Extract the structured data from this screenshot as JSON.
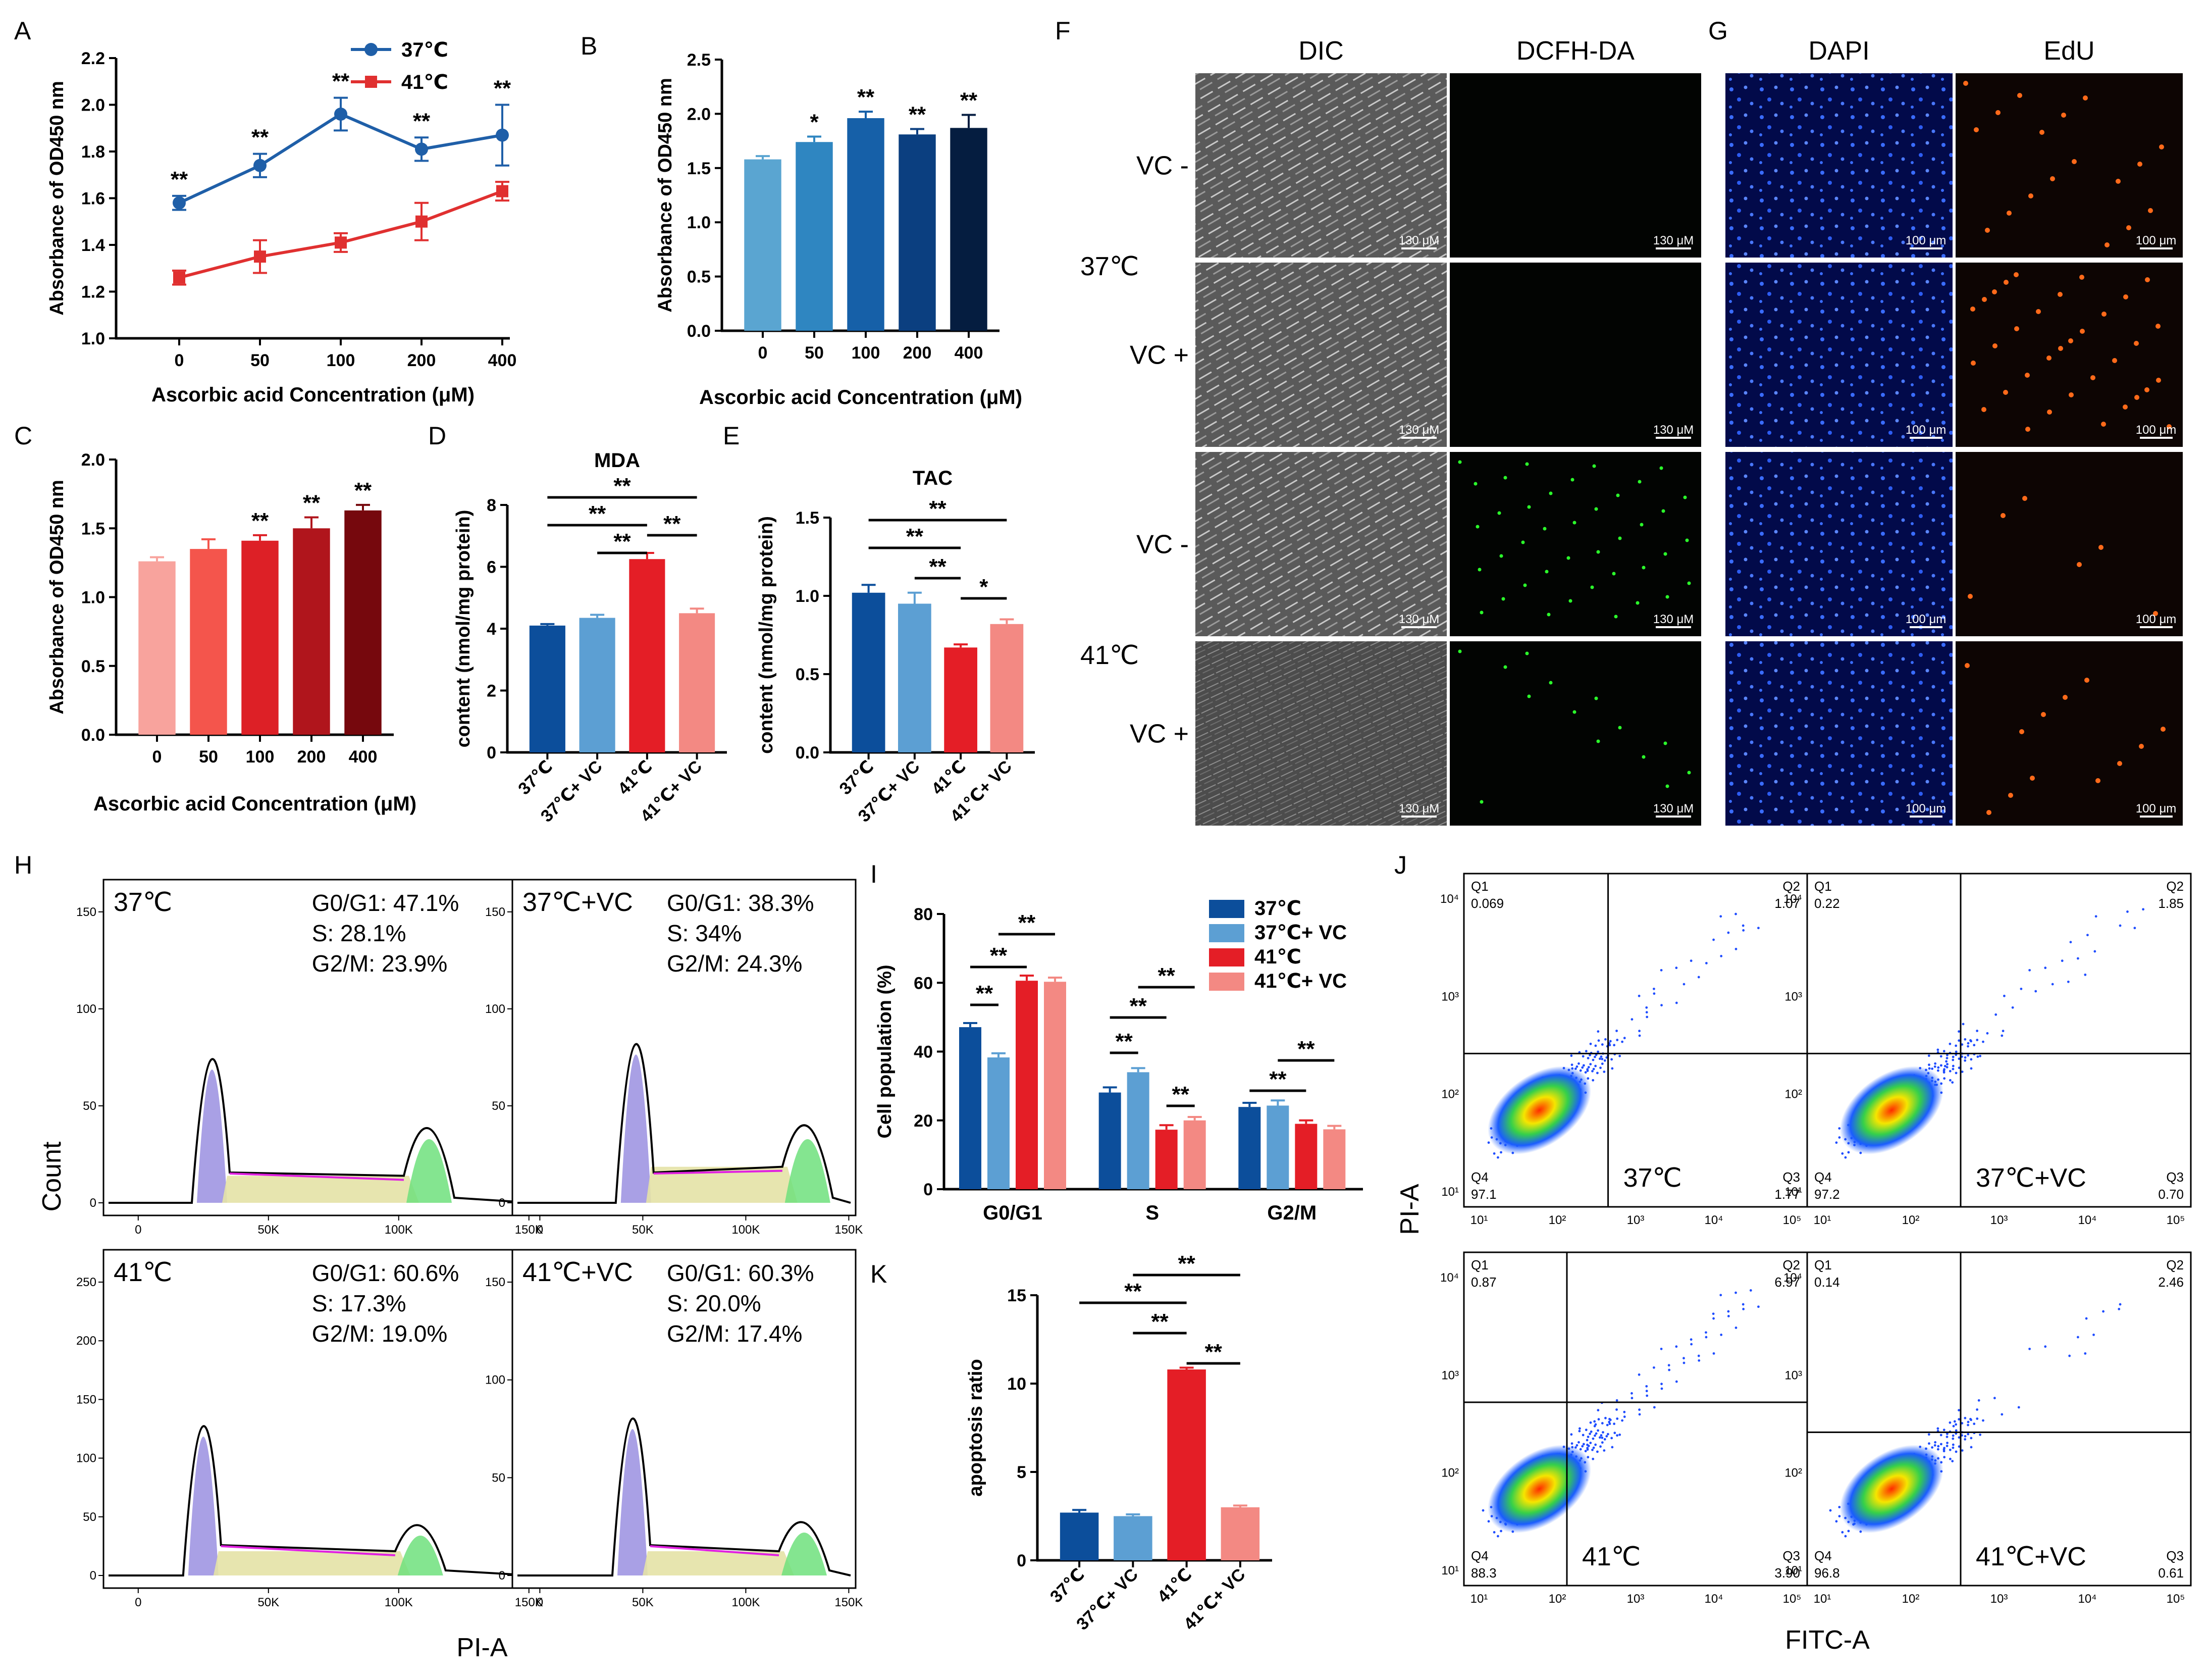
{
  "panels": [
    "A",
    "B",
    "C",
    "D",
    "E",
    "F",
    "G",
    "H",
    "I",
    "J",
    "K"
  ],
  "colors": {
    "c37": "#1f5fa8",
    "c41": "#e03030",
    "b_shades": [
      "#5aa5d1",
      "#2f86c1",
      "#1660a8",
      "#0b3f80",
      "#051d40"
    ],
    "c_shades": [
      "#f8a39d",
      "#f4554c",
      "#dd2026",
      "#b0151c",
      "#76080d"
    ],
    "g4": [
      "#0c4e9b",
      "#5c9fd3",
      "#e41e26",
      "#f38983"
    ]
  },
  "chart_data": [
    {
      "id": "A",
      "type": "line",
      "categories": [
        "0",
        "50",
        "100",
        "200",
        "400"
      ],
      "series": [
        {
          "name": "37℃",
          "values": [
            1.58,
            1.74,
            1.96,
            1.81,
            1.87
          ],
          "errors": [
            0.03,
            0.05,
            0.07,
            0.05,
            0.13
          ]
        },
        {
          "name": "41℃",
          "values": [
            1.26,
            1.35,
            1.41,
            1.5,
            1.63
          ],
          "errors": [
            0.03,
            0.07,
            0.04,
            0.08,
            0.04
          ]
        }
      ],
      "stars": [
        "**",
        "**",
        "**",
        "**",
        "**"
      ],
      "ylabel": "Absorbance of OD450 nm",
      "xlabel": "Ascorbic acid Concentration (μM)",
      "ylim": [
        1.0,
        2.2
      ],
      "yticks": [
        "1.0",
        "1.2",
        "1.4",
        "1.6",
        "1.8",
        "2.0",
        "2.2"
      ]
    },
    {
      "id": "B",
      "type": "bar",
      "categories": [
        "0",
        "50",
        "100",
        "200",
        "400"
      ],
      "values": [
        1.58,
        1.74,
        1.96,
        1.81,
        1.87
      ],
      "errors": [
        0.03,
        0.05,
        0.06,
        0.05,
        0.12
      ],
      "stars": [
        "",
        "*",
        "**",
        "**",
        "**"
      ],
      "ylabel": "Absorbance of OD450 nm",
      "xlabel": "Ascorbic acid Concentration (μM)",
      "ylim": [
        0,
        2.5
      ],
      "yticks": [
        "0.0",
        "0.5",
        "1.0",
        "1.5",
        "2.0",
        "2.5"
      ]
    },
    {
      "id": "C",
      "type": "bar",
      "categories": [
        "0",
        "50",
        "100",
        "200",
        "400"
      ],
      "values": [
        1.26,
        1.35,
        1.41,
        1.5,
        1.63
      ],
      "errors": [
        0.03,
        0.07,
        0.04,
        0.08,
        0.04
      ],
      "stars": [
        "",
        "",
        "**",
        "**",
        "**"
      ],
      "ylabel": "Absorbance of OD450 nm",
      "xlabel": "Ascorbic acid Concentration (μM)",
      "ylim": [
        0,
        2.0
      ],
      "yticks": [
        "0.0",
        "0.5",
        "1.0",
        "1.5",
        "2.0"
      ]
    },
    {
      "id": "D",
      "type": "bar",
      "title": "MDA",
      "categories": [
        "37℃",
        "37℃+ VC",
        "41℃",
        "41℃+ VC"
      ],
      "values": [
        4.1,
        4.35,
        6.25,
        4.5
      ],
      "errors": [
        0.05,
        0.1,
        0.2,
        0.15
      ],
      "ylabel": "content (nmol/mg protein)",
      "ylim": [
        0,
        8
      ],
      "yticks": [
        "0",
        "2",
        "4",
        "6",
        "8"
      ]
    },
    {
      "id": "E",
      "type": "bar",
      "title": "TAC",
      "categories": [
        "37℃",
        "37℃+ VC",
        "41℃",
        "41℃+ VC"
      ],
      "values": [
        1.02,
        0.95,
        0.67,
        0.82
      ],
      "errors": [
        0.05,
        0.07,
        0.02,
        0.03
      ],
      "ylabel": "content (nmol/mg protein)",
      "ylim": [
        0,
        1.5
      ],
      "yticks": [
        "0.0",
        "0.5",
        "1.0",
        "1.5"
      ]
    },
    {
      "id": "I",
      "type": "bar",
      "categories": [
        "G0/G1",
        "S",
        "G2/M"
      ],
      "series": [
        {
          "name": "37℃",
          "values": [
            47.1,
            28.1,
            23.9
          ]
        },
        {
          "name": "37℃+ VC",
          "values": [
            38.3,
            34.0,
            24.3
          ]
        },
        {
          "name": "41℃",
          "values": [
            60.6,
            17.3,
            19.0
          ]
        },
        {
          "name": "41℃+ VC",
          "values": [
            60.3,
            20.0,
            17.4
          ]
        }
      ],
      "ylabel": "Cell population (%)",
      "ylim": [
        0,
        80
      ],
      "yticks": [
        "0",
        "20",
        "40",
        "60",
        "80"
      ]
    },
    {
      "id": "K",
      "type": "bar",
      "categories": [
        "37℃",
        "37℃+ VC",
        "41℃",
        "41℃+ VC"
      ],
      "values": [
        2.7,
        2.5,
        10.8,
        3.0
      ],
      "errors": [
        0.15,
        0.1,
        0.1,
        0.1
      ],
      "ylabel": "apoptosis ratio",
      "ylim": [
        0,
        15
      ],
      "yticks": [
        "0",
        "5",
        "10",
        "15"
      ]
    }
  ],
  "sig": "**",
  "sig_single": "*",
  "micro": {
    "F_headers": [
      "DIC",
      "DCFH-DA"
    ],
    "G_headers": [
      "DAPI",
      "EdU"
    ],
    "row_labels": [
      "VC -",
      "VC +",
      "VC -",
      "VC +"
    ],
    "temps": [
      "37℃",
      "41℃"
    ],
    "scale_F": "130 μM",
    "scale_G": "100 μm"
  },
  "flow_H": {
    "ylabel": "Count",
    "xlabel": "PI-A",
    "xticks": [
      "0",
      "50K",
      "100K",
      "150K"
    ],
    "plots": [
      {
        "label": "37℃",
        "g0": "G0/G1: 47.1%",
        "s": "S: 28.1%",
        "g2": "G2/M: 23.9%",
        "yticks": [
          "0",
          "50",
          "100",
          "150"
        ]
      },
      {
        "label": "37℃+VC",
        "g0": "G0/G1: 38.3%",
        "s": "S: 34%",
        "g2": "G2/M: 24.3%",
        "yticks": [
          "0",
          "50",
          "100",
          "150"
        ]
      },
      {
        "label": "41℃",
        "g0": "G0/G1: 60.6%",
        "s": "S: 17.3%",
        "g2": "G2/M: 19.0%",
        "yticks": [
          "0",
          "50",
          "100",
          "150",
          "200",
          "250"
        ]
      },
      {
        "label": "41℃+VC",
        "g0": "G0/G1: 60.3%",
        "s": "S: 20.0%",
        "g2": "G2/M: 17.4%",
        "yticks": [
          "0",
          "50",
          "100",
          "150"
        ]
      }
    ]
  },
  "flow_J": {
    "ylabel": "PI-A",
    "xlabel": "FITC-A",
    "axis_ticks": [
      "10¹",
      "10²",
      "10³",
      "10⁴",
      "10⁵"
    ],
    "plots": [
      {
        "label": "37℃",
        "q1": "Q1",
        "q1v": "0.069",
        "q2": "Q2",
        "q2v": "1.07",
        "q3": "Q3",
        "q3v": "1.77",
        "q4": "Q4",
        "q4v": "97.1"
      },
      {
        "label": "37℃+VC",
        "q1": "Q1",
        "q1v": "0.22",
        "q2": "Q2",
        "q2v": "1.85",
        "q3": "Q3",
        "q3v": "0.70",
        "q4": "Q4",
        "q4v": "97.2"
      },
      {
        "label": "41℃",
        "q1": "Q1",
        "q1v": "0.87",
        "q2": "Q2",
        "q2v": "6.97",
        "q3": "Q3",
        "q3v": "3.90",
        "q4": "Q4",
        "q4v": "88.3"
      },
      {
        "label": "41℃+VC",
        "q1": "Q1",
        "q1v": "0.14",
        "q2": "Q2",
        "q2v": "2.46",
        "q3": "Q3",
        "q3v": "0.61",
        "q4": "Q4",
        "q4v": "96.8"
      }
    ]
  }
}
